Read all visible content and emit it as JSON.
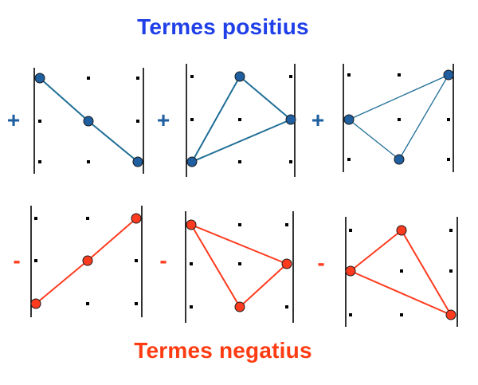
{
  "title_positive": "Termes positius",
  "title_negative": "Termes negatius",
  "sign_positive": "+",
  "sign_negative": "-",
  "colors": {
    "title_positive": "#1f3fe8",
    "title_negative": "#ff3b12",
    "positive_line": "#1f6e96",
    "positive_node": "#1f5fa0",
    "negative": "#ff3b1f",
    "grid": "#000000"
  },
  "positive_terms": [
    {
      "sign": "+",
      "path": [
        [
          1,
          1
        ],
        [
          2,
          2
        ],
        [
          3,
          3
        ]
      ]
    },
    {
      "sign": "+",
      "path": [
        [
          1,
          3
        ],
        [
          2,
          1
        ],
        [
          3,
          2
        ],
        [
          1,
          3
        ]
      ]
    },
    {
      "sign": "+",
      "path": [
        [
          1,
          2
        ],
        [
          3,
          1
        ],
        [
          2,
          3
        ],
        [
          1,
          2
        ]
      ]
    }
  ],
  "negative_terms": [
    {
      "sign": "-",
      "path": [
        [
          1,
          3
        ],
        [
          2,
          2
        ],
        [
          3,
          1
        ]
      ]
    },
    {
      "sign": "-",
      "path": [
        [
          1,
          1
        ],
        [
          3,
          2
        ],
        [
          2,
          3
        ],
        [
          1,
          1
        ]
      ]
    },
    {
      "sign": "-",
      "path": [
        [
          1,
          2
        ],
        [
          2,
          1
        ],
        [
          3,
          3
        ],
        [
          1,
          2
        ]
      ]
    }
  ]
}
